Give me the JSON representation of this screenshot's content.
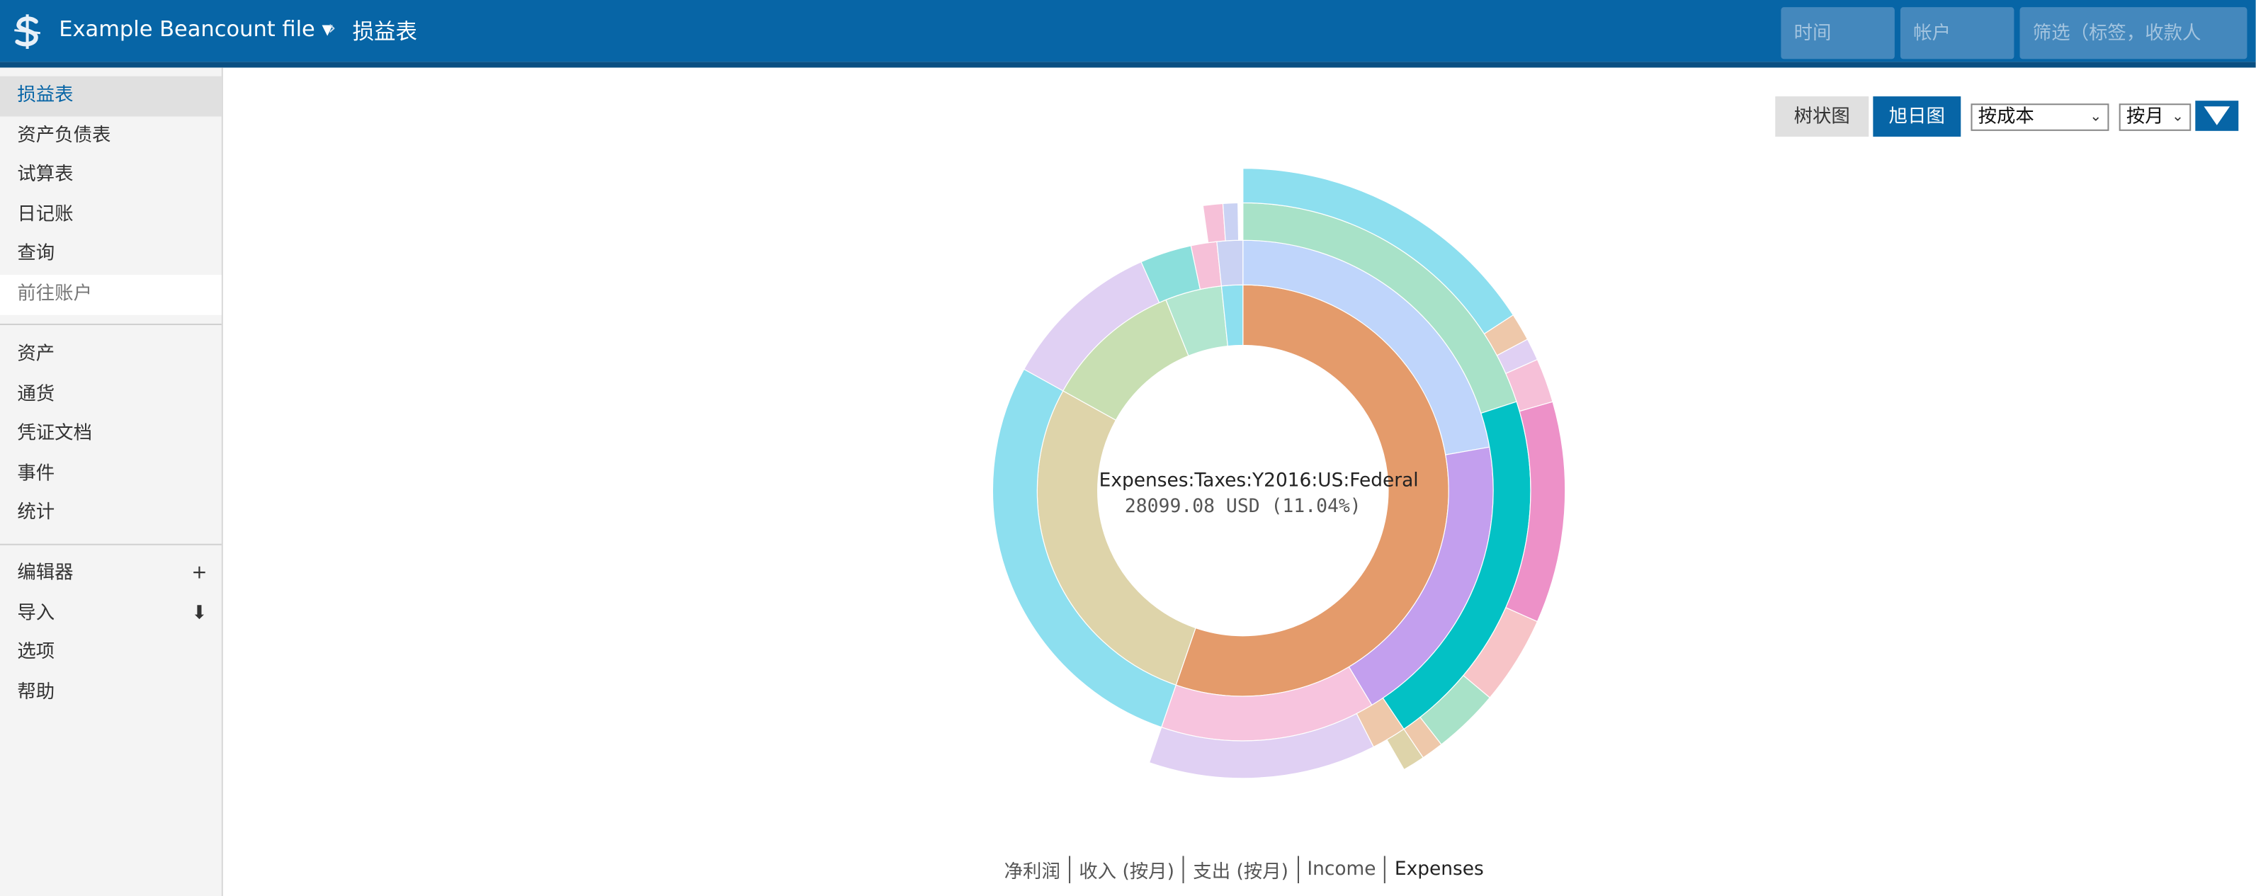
{
  "header": {
    "file_title": "Example Beancount file ▾",
    "separator": "›",
    "page_title": "损益表",
    "time_placeholder": "时间",
    "account_placeholder": "帐户",
    "filter_placeholder": "筛选（标签，收款人"
  },
  "sidebar": {
    "reports": [
      "损益表",
      "资产负债表",
      "试算表",
      "日记账",
      "查询",
      "前往账户"
    ],
    "entries": [
      "资产",
      "通货",
      "凭证文档",
      "事件",
      "统计"
    ],
    "tools": [
      {
        "label": "编辑器",
        "aux": "+"
      },
      {
        "label": "导入",
        "aux": "⬇"
      },
      {
        "label": "选项",
        "aux": ""
      },
      {
        "label": "帮助",
        "aux": ""
      }
    ]
  },
  "chart_controls": {
    "treemap_label": "树状图",
    "sunburst_label": "旭日图",
    "conversion": "按成本",
    "interval": "按月",
    "toggle_icon": "triangle-down-icon"
  },
  "center": {
    "account": "Expenses:Taxes:Y2016:US:Federal",
    "value": "28099.08 USD (11.04%)"
  },
  "chart_switcher": [
    "净利润",
    "收入 (按月)",
    "支出 (按月)",
    "Income",
    "Expenses"
  ],
  "colors": {
    "brand": "#0765a6",
    "header_rule": "#0a4f82",
    "active_tab": "#0765a6"
  }
}
